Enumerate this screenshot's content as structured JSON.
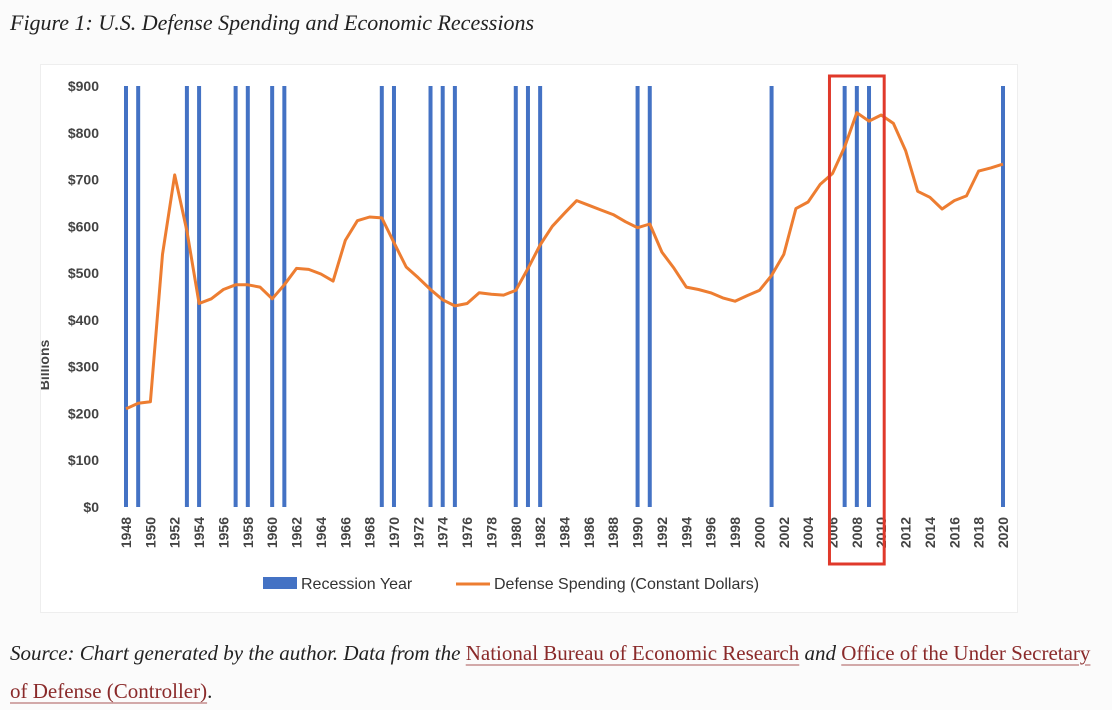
{
  "figure_title": "Figure 1: U.S. Defense Spending and Economic Recessions",
  "source": {
    "prefix": "Source: Chart generated by the author. Data from the",
    "link1": "National Bureau of Economic Research",
    "middle": "and",
    "link2": "Office of the Under Secretary of Defense (Controller)",
    "suffix": "."
  },
  "colors": {
    "recession": "#4472c4",
    "spending": "#ed7d31",
    "highlight": "#e0392b"
  },
  "chart_data": {
    "type": "line",
    "title": "",
    "xlabel": "",
    "ylabel": "Billions",
    "ylim": [
      0,
      900
    ],
    "xlim": [
      1948,
      2020
    ],
    "y_ticks": [
      0,
      100,
      200,
      300,
      400,
      500,
      600,
      700,
      800,
      900
    ],
    "y_tick_labels": [
      "$0",
      "$100",
      "$200",
      "$300",
      "$400",
      "$500",
      "$600",
      "$700",
      "$800",
      "$900"
    ],
    "x_ticks": [
      1948,
      1950,
      1952,
      1954,
      1956,
      1958,
      1960,
      1962,
      1964,
      1966,
      1968,
      1970,
      1972,
      1974,
      1976,
      1978,
      1980,
      1982,
      1984,
      1986,
      1988,
      1990,
      1992,
      1994,
      1996,
      1998,
      2000,
      2002,
      2004,
      2006,
      2008,
      2010,
      2012,
      2014,
      2016,
      2018,
      2020
    ],
    "grid": false,
    "legend_position": "bottom",
    "legend": [
      "Recession Year",
      "Defense Spending (Constant Dollars)"
    ],
    "recession_years": [
      1948,
      1949,
      1953,
      1954,
      1957,
      1958,
      1960,
      1961,
      1969,
      1970,
      1973,
      1974,
      1975,
      1980,
      1981,
      1982,
      1990,
      1991,
      2001,
      2007,
      2008,
      2009,
      2020
    ],
    "highlight_years": [
      2006,
      2010
    ],
    "series": [
      {
        "name": "Defense Spending (Constant Dollars)",
        "x": [
          1948,
          1949,
          1950,
          1951,
          1952,
          1953,
          1954,
          1955,
          1956,
          1957,
          1958,
          1959,
          1960,
          1961,
          1962,
          1963,
          1964,
          1965,
          1966,
          1967,
          1968,
          1969,
          1970,
          1971,
          1972,
          1973,
          1974,
          1975,
          1976,
          1977,
          1978,
          1979,
          1980,
          1981,
          1982,
          1983,
          1984,
          1985,
          1986,
          1987,
          1988,
          1989,
          1990,
          1991,
          1992,
          1993,
          1994,
          1995,
          1996,
          1997,
          1998,
          1999,
          2000,
          2001,
          2002,
          2003,
          2004,
          2005,
          2006,
          2007,
          2008,
          2009,
          2010,
          2011,
          2012,
          2013,
          2014,
          2015,
          2016,
          2017,
          2018,
          2019,
          2020
        ],
        "values": [
          210,
          222,
          225,
          540,
          710,
          590,
          435,
          445,
          465,
          475,
          475,
          470,
          445,
          475,
          510,
          508,
          498,
          483,
          570,
          612,
          620,
          618,
          565,
          513,
          490,
          465,
          443,
          430,
          435,
          458,
          455,
          453,
          463,
          510,
          560,
          600,
          628,
          655,
          645,
          635,
          625,
          610,
          597,
          605,
          545,
          510,
          470,
          465,
          458,
          447,
          440,
          452,
          463,
          495,
          540,
          638,
          652,
          690,
          713,
          770,
          843,
          825,
          838,
          820,
          762,
          675,
          662,
          637,
          655,
          665,
          718,
          725,
          733
        ]
      }
    ]
  }
}
